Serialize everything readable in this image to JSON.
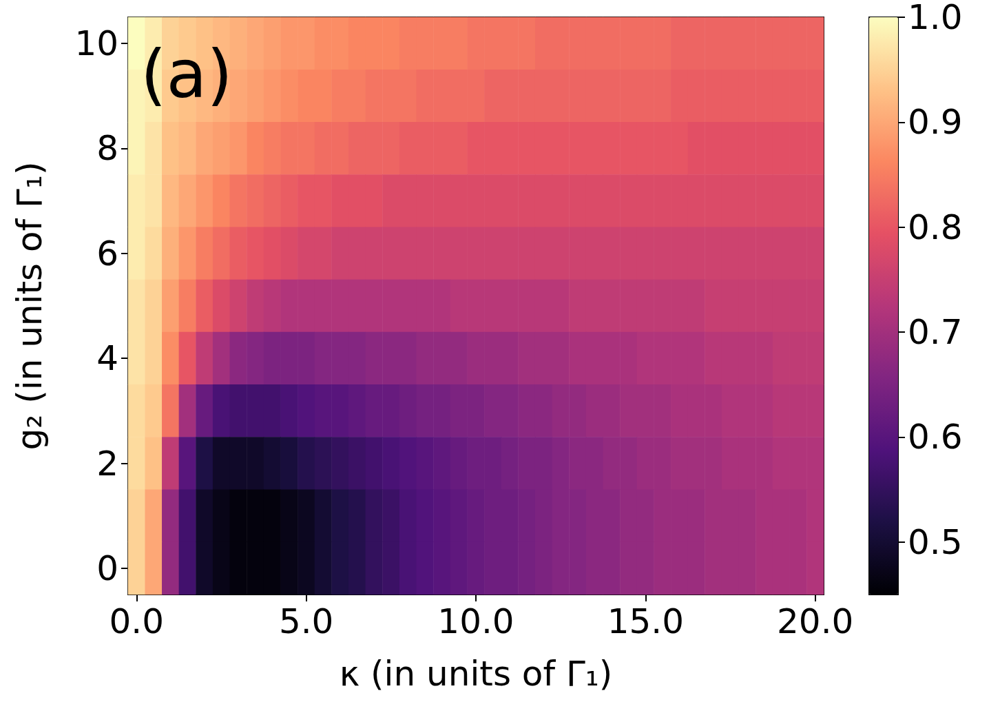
{
  "chart_data": {
    "type": "heatmap",
    "xlabel": "κ (in units of Γ₁)",
    "ylabel": "g₂ (in units of Γ₁)",
    "annotations": [
      "(a)"
    ],
    "categories": [
      "0.0",
      null,
      null,
      null,
      null,
      null,
      null,
      null,
      null,
      null,
      "5.0",
      null,
      null,
      null,
      null,
      null,
      null,
      null,
      null,
      null,
      "10.0",
      null,
      null,
      null,
      null,
      null,
      null,
      null,
      null,
      null,
      "15.0",
      null,
      null,
      null,
      null,
      null,
      null,
      null,
      null,
      null,
      "20.0"
    ],
    "y_categories": [
      "10",
      null,
      "8",
      null,
      "6",
      null,
      "4",
      null,
      "2",
      null,
      "0"
    ],
    "clim": [
      0.45,
      1.0
    ],
    "cticks": [
      {
        "value": 0.5,
        "label": "0.5"
      },
      {
        "value": 0.6,
        "label": "0.6"
      },
      {
        "value": 0.7,
        "label": "0.7"
      },
      {
        "value": 0.8,
        "label": "0.8"
      },
      {
        "value": 0.9,
        "label": "0.9"
      },
      {
        "value": 1,
        "label": "1.0"
      }
    ],
    "cells": [
      [
        1.0,
        0.98,
        0.95,
        0.94,
        0.93,
        0.92,
        0.91,
        0.9,
        0.89,
        0.88,
        0.88,
        0.87,
        0.87,
        0.86,
        0.86,
        0.86,
        0.85,
        0.85,
        0.85,
        0.85,
        0.84,
        0.84,
        0.84,
        0.84,
        0.83,
        0.83,
        0.83,
        0.83,
        0.83,
        0.83,
        0.83,
        0.83,
        0.82,
        0.82,
        0.82,
        0.82,
        0.82,
        0.82,
        0.82,
        0.82,
        0.82
      ],
      [
        0.99,
        0.98,
        0.94,
        0.93,
        0.92,
        0.91,
        0.9,
        0.89,
        0.88,
        0.87,
        0.86,
        0.86,
        0.85,
        0.85,
        0.84,
        0.84,
        0.84,
        0.83,
        0.83,
        0.83,
        0.83,
        0.82,
        0.82,
        0.82,
        0.82,
        0.82,
        0.82,
        0.82,
        0.82,
        0.82,
        0.82,
        0.82,
        0.81,
        0.81,
        0.81,
        0.81,
        0.81,
        0.81,
        0.81,
        0.81,
        0.81
      ],
      [
        0.99,
        0.97,
        0.93,
        0.92,
        0.9,
        0.89,
        0.88,
        0.86,
        0.85,
        0.84,
        0.84,
        0.83,
        0.83,
        0.82,
        0.82,
        0.82,
        0.81,
        0.81,
        0.81,
        0.81,
        0.8,
        0.8,
        0.8,
        0.8,
        0.8,
        0.8,
        0.8,
        0.8,
        0.8,
        0.8,
        0.8,
        0.8,
        0.8,
        0.79,
        0.79,
        0.79,
        0.79,
        0.79,
        0.79,
        0.79,
        0.79
      ],
      [
        0.98,
        0.97,
        0.92,
        0.9,
        0.88,
        0.86,
        0.84,
        0.83,
        0.82,
        0.81,
        0.8,
        0.8,
        0.79,
        0.79,
        0.79,
        0.78,
        0.78,
        0.78,
        0.78,
        0.78,
        0.78,
        0.78,
        0.78,
        0.78,
        0.78,
        0.78,
        0.78,
        0.78,
        0.78,
        0.78,
        0.78,
        0.78,
        0.78,
        0.78,
        0.78,
        0.78,
        0.78,
        0.78,
        0.78,
        0.78,
        0.78
      ],
      [
        0.98,
        0.96,
        0.91,
        0.88,
        0.85,
        0.83,
        0.81,
        0.8,
        0.79,
        0.78,
        0.77,
        0.77,
        0.76,
        0.76,
        0.76,
        0.76,
        0.76,
        0.76,
        0.76,
        0.76,
        0.76,
        0.76,
        0.76,
        0.76,
        0.76,
        0.76,
        0.76,
        0.76,
        0.76,
        0.76,
        0.76,
        0.76,
        0.76,
        0.76,
        0.76,
        0.76,
        0.76,
        0.76,
        0.76,
        0.76,
        0.76
      ],
      [
        0.97,
        0.95,
        0.89,
        0.85,
        0.81,
        0.78,
        0.76,
        0.74,
        0.73,
        0.72,
        0.72,
        0.72,
        0.72,
        0.72,
        0.72,
        0.72,
        0.72,
        0.72,
        0.72,
        0.73,
        0.73,
        0.73,
        0.73,
        0.73,
        0.73,
        0.73,
        0.74,
        0.74,
        0.74,
        0.74,
        0.74,
        0.74,
        0.74,
        0.74,
        0.75,
        0.75,
        0.75,
        0.75,
        0.75,
        0.75,
        0.75
      ],
      [
        0.97,
        0.95,
        0.87,
        0.8,
        0.74,
        0.7,
        0.67,
        0.66,
        0.65,
        0.65,
        0.65,
        0.66,
        0.66,
        0.66,
        0.67,
        0.67,
        0.67,
        0.68,
        0.68,
        0.68,
        0.69,
        0.69,
        0.69,
        0.7,
        0.7,
        0.7,
        0.71,
        0.71,
        0.71,
        0.71,
        0.72,
        0.72,
        0.72,
        0.72,
        0.73,
        0.73,
        0.73,
        0.73,
        0.74,
        0.74,
        0.74
      ],
      [
        0.96,
        0.94,
        0.84,
        0.7,
        0.62,
        0.58,
        0.57,
        0.57,
        0.57,
        0.58,
        0.59,
        0.6,
        0.6,
        0.61,
        0.62,
        0.62,
        0.63,
        0.64,
        0.64,
        0.65,
        0.65,
        0.66,
        0.66,
        0.67,
        0.67,
        0.68,
        0.68,
        0.69,
        0.69,
        0.7,
        0.7,
        0.7,
        0.71,
        0.71,
        0.71,
        0.72,
        0.72,
        0.72,
        0.73,
        0.73,
        0.73
      ],
      [
        0.96,
        0.93,
        0.74,
        0.6,
        0.52,
        0.49,
        0.49,
        0.49,
        0.5,
        0.51,
        0.53,
        0.54,
        0.55,
        0.56,
        0.57,
        0.58,
        0.59,
        0.6,
        0.61,
        0.62,
        0.63,
        0.63,
        0.64,
        0.65,
        0.65,
        0.66,
        0.67,
        0.67,
        0.68,
        0.68,
        0.69,
        0.69,
        0.7,
        0.7,
        0.7,
        0.71,
        0.71,
        0.71,
        0.72,
        0.72,
        0.72
      ],
      [
        0.95,
        0.9,
        0.68,
        0.57,
        0.49,
        0.47,
        0.46,
        0.46,
        0.46,
        0.47,
        0.48,
        0.5,
        0.52,
        0.53,
        0.55,
        0.56,
        0.58,
        0.59,
        0.6,
        0.61,
        0.62,
        0.63,
        0.63,
        0.64,
        0.65,
        0.66,
        0.66,
        0.67,
        0.67,
        0.68,
        0.68,
        0.69,
        0.69,
        0.69,
        0.7,
        0.7,
        0.7,
        0.71,
        0.71,
        0.71,
        0.72
      ],
      [
        0.95,
        0.9,
        0.68,
        0.57,
        0.49,
        0.47,
        0.46,
        0.46,
        0.46,
        0.47,
        0.48,
        0.5,
        0.52,
        0.53,
        0.55,
        0.56,
        0.58,
        0.59,
        0.6,
        0.61,
        0.62,
        0.63,
        0.63,
        0.64,
        0.65,
        0.66,
        0.66,
        0.67,
        0.67,
        0.68,
        0.68,
        0.69,
        0.69,
        0.69,
        0.7,
        0.7,
        0.7,
        0.71,
        0.71,
        0.71,
        0.72
      ]
    ]
  }
}
